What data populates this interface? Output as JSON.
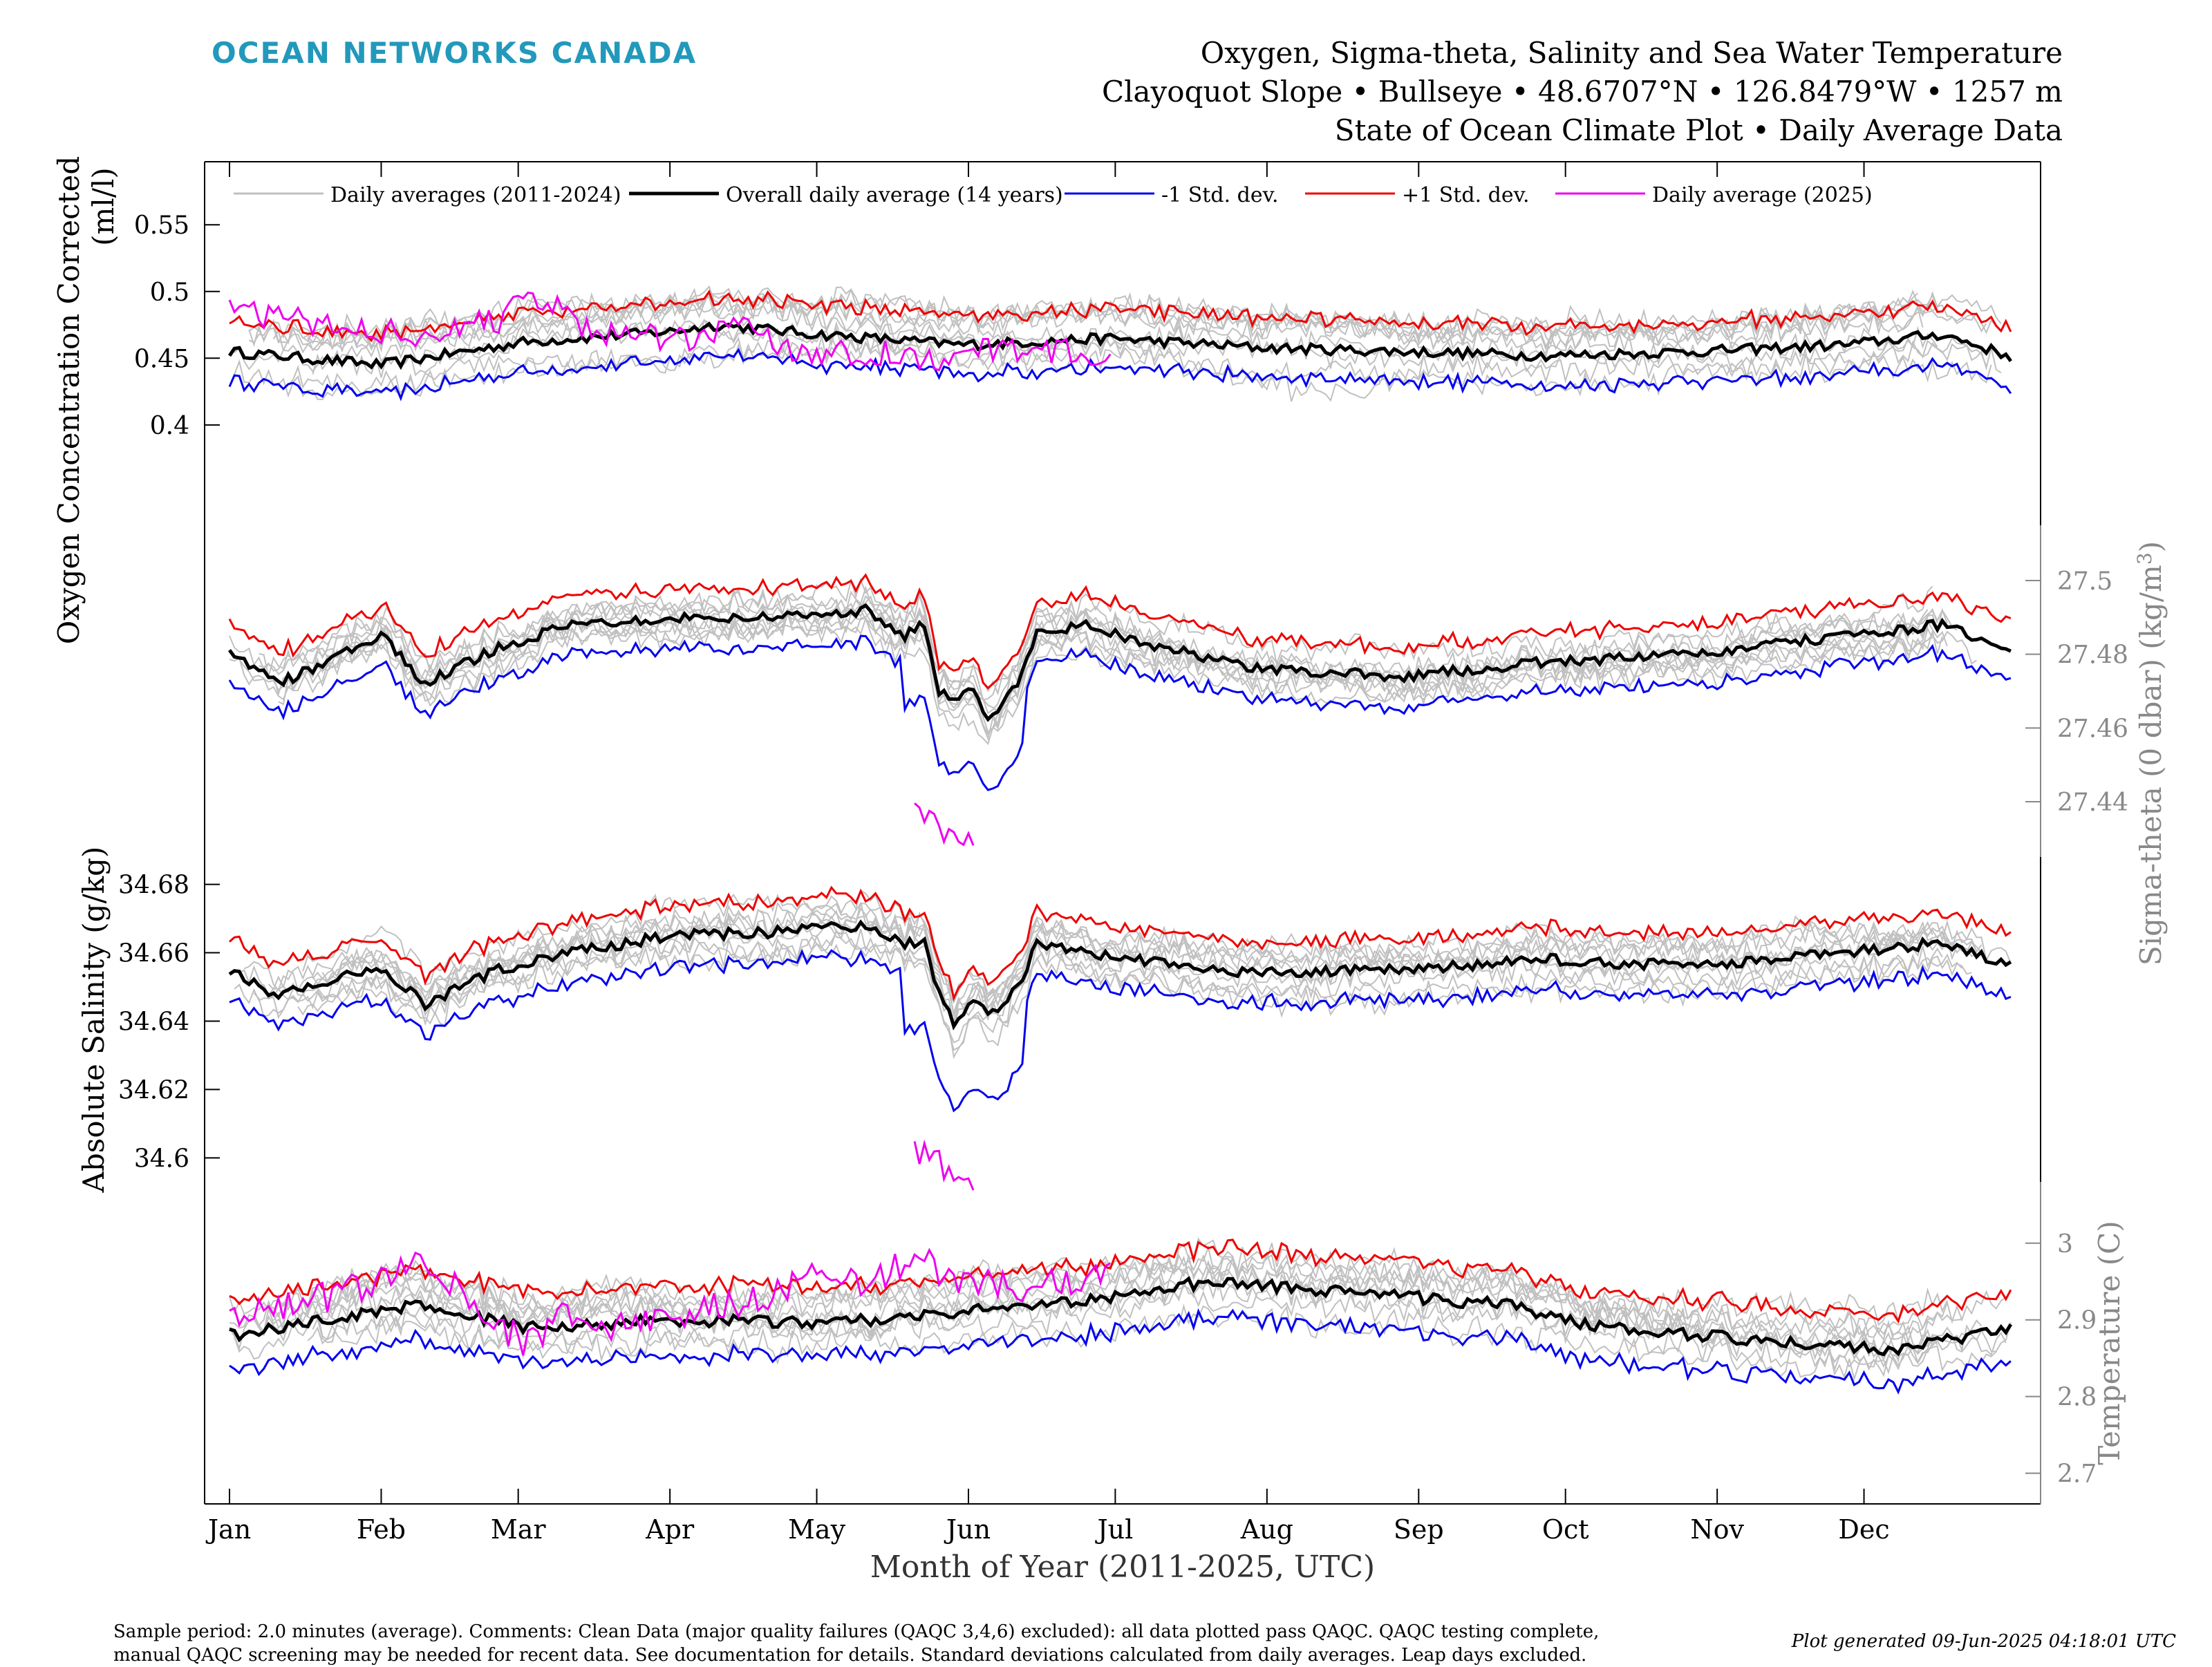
{
  "header": {
    "brand": "OCEAN NETWORKS CANADA",
    "title_line1": "Oxygen, Sigma-theta, Salinity and Sea Water Temperature",
    "title_line2": "Clayoquot Slope • Bullseye • 48.6707°N • 126.8479°W • 1257 m",
    "title_line3": "State of Ocean Climate Plot • Daily Average Data"
  },
  "colors": {
    "history": "#c0c0c0",
    "mean": "#000000",
    "minus_std": "#0000ee",
    "plus_std": "#ee0000",
    "current_year": "#ee00ee",
    "right_axis": "#888888"
  },
  "chart_data": {
    "type": "line",
    "x_axis": {
      "label": "Month of Year (2011-2025, UTC)",
      "ticks": [
        "Jan",
        "Feb",
        "Mar",
        "Apr",
        "May",
        "Jun",
        "Jul",
        "Aug",
        "Sep",
        "Oct",
        "Nov",
        "Dec"
      ],
      "range_day_of_year": [
        0,
        365
      ]
    },
    "legend": {
      "placement": "top",
      "entries": [
        {
          "label": "Daily averages (2011-2024)",
          "color": "#c0c0c0"
        },
        {
          "label": "Overall daily average (14 years)",
          "color": "#000000"
        },
        {
          "label": "-1 Std. dev.",
          "color": "#0000ee"
        },
        {
          "label": "+1 Std. dev.",
          "color": "#ee0000"
        },
        {
          "label": "Daily average (2025)",
          "color": "#ee00ee"
        }
      ]
    },
    "panels": [
      {
        "name": "oxygen",
        "axis_side": "left",
        "ylabel_line1": "Oxygen Concentration Corrected",
        "ylabel_line2": "(ml/l)",
        "yticks": [
          "0.4",
          "0.45",
          "0.5",
          "0.55"
        ],
        "ytick_values": [
          0.4,
          0.45,
          0.5,
          0.55
        ],
        "ylim": [
          0.33,
          0.59
        ],
        "mean_points": [
          [
            0,
            0.455
          ],
          [
            31,
            0.445
          ],
          [
            60,
            0.462
          ],
          [
            90,
            0.47
          ],
          [
            100,
            0.475
          ],
          [
            120,
            0.468
          ],
          [
            150,
            0.46
          ],
          [
            180,
            0.465
          ],
          [
            210,
            0.458
          ],
          [
            240,
            0.455
          ],
          [
            270,
            0.452
          ],
          [
            300,
            0.455
          ],
          [
            330,
            0.46
          ],
          [
            350,
            0.468
          ],
          [
            365,
            0.45
          ]
        ],
        "std": 0.022,
        "current_year_points": [
          [
            0,
            0.485
          ],
          [
            20,
            0.475
          ],
          [
            40,
            0.468
          ],
          [
            55,
            0.478
          ],
          [
            60,
            0.5
          ],
          [
            75,
            0.47
          ],
          [
            95,
            0.462
          ],
          [
            105,
            0.48
          ],
          [
            115,
            0.455
          ],
          [
            130,
            0.455
          ],
          [
            145,
            0.45
          ],
          [
            160,
            0.458
          ],
          [
            172,
            0.455
          ],
          [
            180,
            0.448
          ]
        ],
        "history_spread": 0.04
      },
      {
        "name": "sigma-theta",
        "axis_side": "right",
        "ylabel": "Sigma-theta (0 dbar) (kg/m",
        "ylabel_sup": "3",
        "ylabel_end": ")",
        "yticks": [
          "27.44",
          "27.46",
          "27.48",
          "27.5"
        ],
        "ytick_values": [
          27.44,
          27.46,
          27.48,
          27.5
        ],
        "ylim": [
          27.425,
          27.515
        ],
        "mean_points": [
          [
            0,
            27.48
          ],
          [
            10,
            27.472
          ],
          [
            20,
            27.478
          ],
          [
            31,
            27.485
          ],
          [
            40,
            27.472
          ],
          [
            55,
            27.482
          ],
          [
            70,
            27.488
          ],
          [
            90,
            27.49
          ],
          [
            110,
            27.49
          ],
          [
            130,
            27.492
          ],
          [
            138,
            27.485
          ],
          [
            142,
            27.488
          ],
          [
            145,
            27.47
          ],
          [
            148,
            27.468
          ],
          [
            152,
            27.47
          ],
          [
            155,
            27.462
          ],
          [
            160,
            27.47
          ],
          [
            162,
            27.475
          ],
          [
            165,
            27.486
          ],
          [
            175,
            27.488
          ],
          [
            190,
            27.482
          ],
          [
            210,
            27.476
          ],
          [
            240,
            27.474
          ],
          [
            270,
            27.478
          ],
          [
            300,
            27.48
          ],
          [
            330,
            27.485
          ],
          [
            350,
            27.488
          ],
          [
            365,
            27.48
          ]
        ],
        "std": 0.008,
        "std_dip_days": [
          138,
          162
        ],
        "std_dip_extra": 0.012,
        "current_year_points": [
          [
            140,
            27.44
          ],
          [
            143,
            27.437
          ],
          [
            146,
            27.432
          ],
          [
            149,
            27.431
          ],
          [
            152,
            27.428
          ]
        ],
        "history_spread": 0.014
      },
      {
        "name": "salinity",
        "axis_side": "left",
        "ylabel": "Absolute Salinity (g/kg)",
        "yticks": [
          "34.6",
          "34.62",
          "34.64",
          "34.66",
          "34.68"
        ],
        "ytick_values": [
          34.6,
          34.62,
          34.64,
          34.66,
          34.68
        ],
        "ylim": [
          34.593,
          34.688
        ],
        "mean_points": [
          [
            0,
            34.655
          ],
          [
            10,
            34.647
          ],
          [
            20,
            34.652
          ],
          [
            31,
            34.655
          ],
          [
            40,
            34.645
          ],
          [
            55,
            34.655
          ],
          [
            70,
            34.66
          ],
          [
            90,
            34.665
          ],
          [
            110,
            34.666
          ],
          [
            130,
            34.668
          ],
          [
            138,
            34.662
          ],
          [
            142,
            34.664
          ],
          [
            145,
            34.648
          ],
          [
            148,
            34.64
          ],
          [
            152,
            34.645
          ],
          [
            155,
            34.642
          ],
          [
            160,
            34.648
          ],
          [
            162,
            34.652
          ],
          [
            165,
            34.663
          ],
          [
            175,
            34.66
          ],
          [
            190,
            34.657
          ],
          [
            210,
            34.654
          ],
          [
            240,
            34.655
          ],
          [
            270,
            34.658
          ],
          [
            300,
            34.656
          ],
          [
            330,
            34.66
          ],
          [
            350,
            34.663
          ],
          [
            365,
            34.656
          ]
        ],
        "std": 0.009,
        "std_dip_days": [
          138,
          162
        ],
        "std_dip_extra": 0.016,
        "current_year_points": [
          [
            140,
            34.603
          ],
          [
            143,
            34.6
          ],
          [
            146,
            34.597
          ],
          [
            149,
            34.595
          ],
          [
            152,
            34.593
          ]
        ],
        "history_spread": 0.015
      },
      {
        "name": "temperature",
        "axis_side": "right",
        "ylabel": "Temperature (C)",
        "yticks": [
          "2.7",
          "2.8",
          "2.9",
          "3"
        ],
        "ytick_values": [
          2.7,
          2.8,
          2.9,
          3.0
        ],
        "ylim": [
          2.66,
          3.08
        ],
        "mean_points": [
          [
            0,
            2.88
          ],
          [
            20,
            2.9
          ],
          [
            40,
            2.92
          ],
          [
            60,
            2.89
          ],
          [
            90,
            2.9
          ],
          [
            120,
            2.895
          ],
          [
            150,
            2.91
          ],
          [
            180,
            2.93
          ],
          [
            200,
            2.95
          ],
          [
            220,
            2.94
          ],
          [
            240,
            2.93
          ],
          [
            260,
            2.92
          ],
          [
            280,
            2.89
          ],
          [
            300,
            2.88
          ],
          [
            320,
            2.87
          ],
          [
            340,
            2.86
          ],
          [
            365,
            2.89
          ]
        ],
        "std": 0.045,
        "current_year_points": [
          [
            0,
            2.9
          ],
          [
            20,
            2.93
          ],
          [
            35,
            2.96
          ],
          [
            40,
            2.98
          ],
          [
            50,
            2.92
          ],
          [
            60,
            2.87
          ],
          [
            70,
            2.91
          ],
          [
            80,
            2.89
          ],
          [
            95,
            2.91
          ],
          [
            110,
            2.93
          ],
          [
            120,
            2.96
          ],
          [
            130,
            2.95
          ],
          [
            140,
            2.98
          ],
          [
            150,
            2.95
          ],
          [
            160,
            2.94
          ],
          [
            170,
            2.95
          ],
          [
            180,
            2.96
          ]
        ],
        "history_spread": 0.08
      }
    ]
  },
  "footer": {
    "note_line1": "Sample period: 2.0 minutes (average). Comments: Clean Data (major quality failures (QAQC 3,4,6) excluded): all data plotted pass QAQC. QAQC testing complete,",
    "note_line2": "manual QAQC screening may be needed for recent data. See documentation for details. Standard deviations calculated from daily averages. Leap days excluded.",
    "generated": "Plot generated 09-Jun-2025 04:18:01 UTC"
  }
}
